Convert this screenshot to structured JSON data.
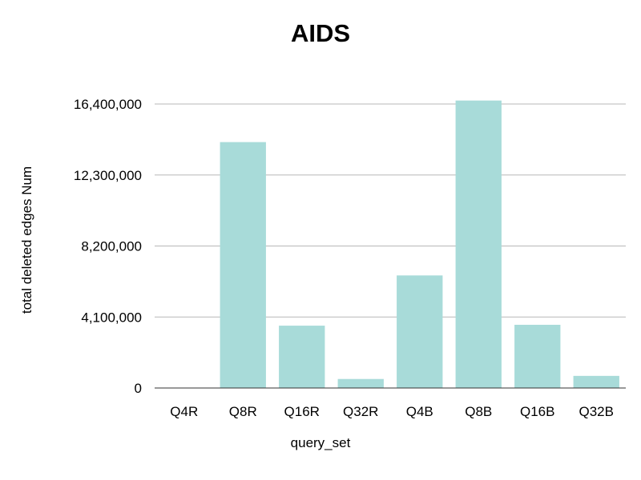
{
  "chart_data": {
    "type": "bar",
    "title": "AIDS",
    "xlabel": "query_set",
    "ylabel": "total deleted edges Num",
    "categories": [
      "Q4R",
      "Q8R",
      "Q16R",
      "Q32R",
      "Q4B",
      "Q8B",
      "Q16B",
      "Q32B"
    ],
    "values": [
      0,
      14200000,
      3600000,
      520000,
      6500000,
      16600000,
      3650000,
      700000
    ],
    "ylim": [
      0,
      16400000
    ],
    "yticks": [
      0,
      4100000,
      8200000,
      12300000,
      16400000
    ],
    "ytick_labels": [
      "0",
      "4,100,000",
      "8,200,000",
      "12,300,000",
      "16,400,000"
    ],
    "bar_color": "#a8dbd9",
    "grid": true,
    "legend": "none"
  }
}
